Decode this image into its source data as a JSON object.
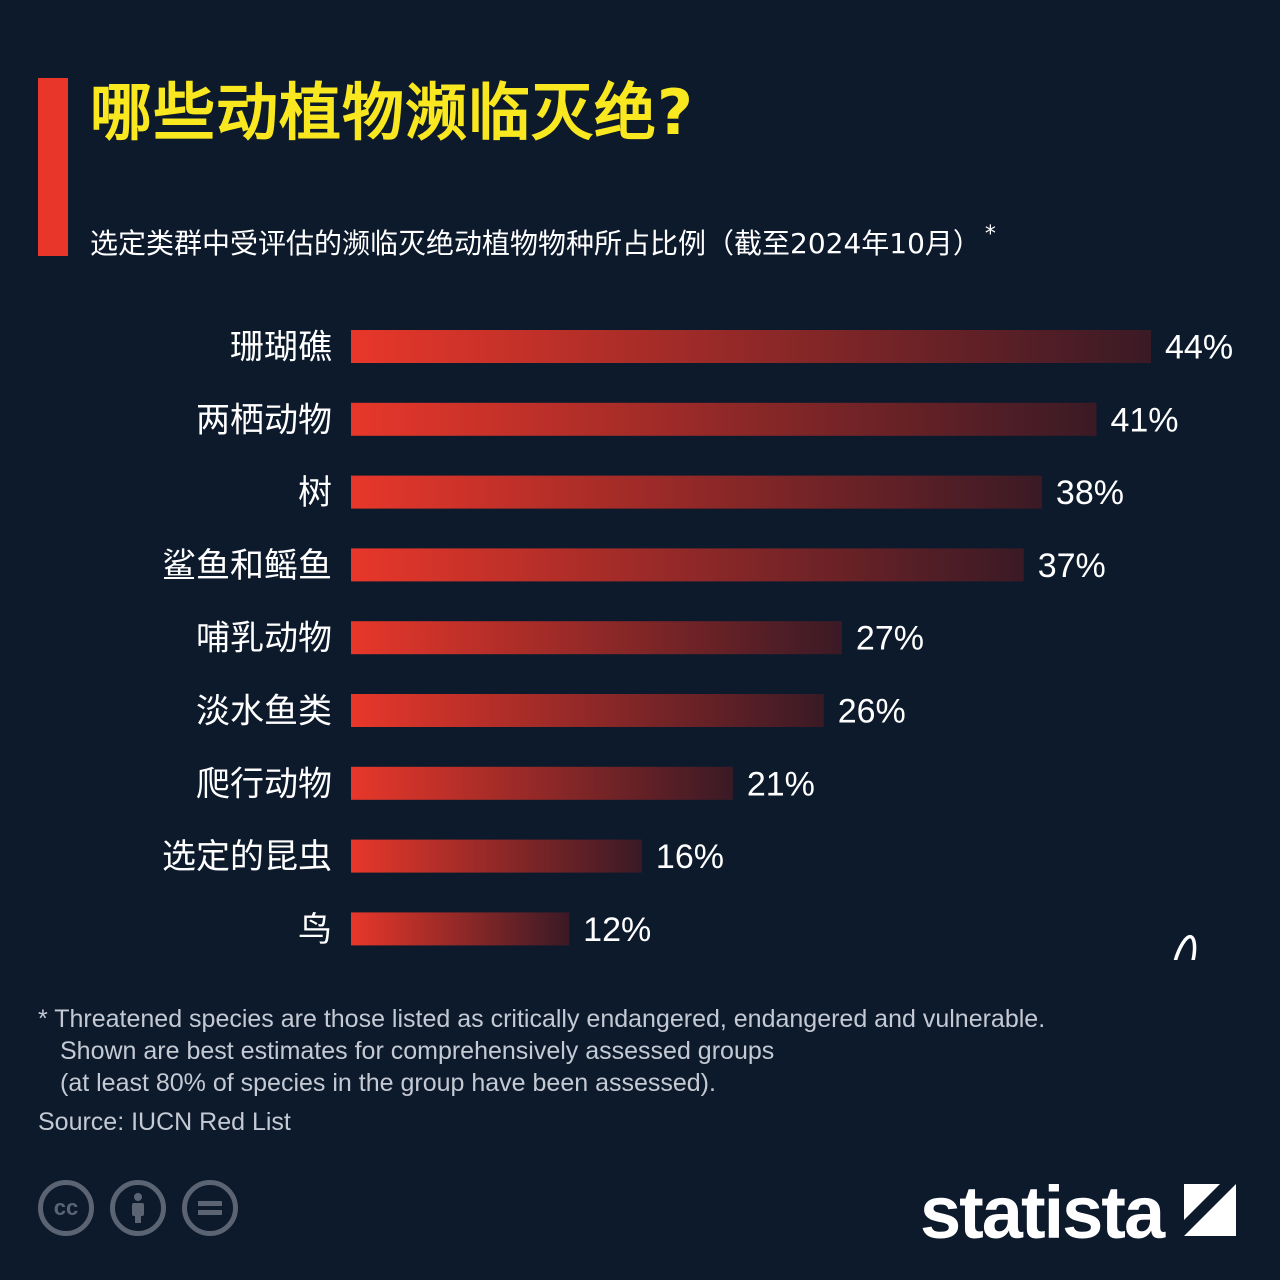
{
  "header": {
    "title": "哪些动植物濒临灭绝?",
    "subtitle": "选定类群中受评估的濒临灭绝动植物物种所占比例（截至2024年10月）",
    "subtitle_marker": "*"
  },
  "chart_data": {
    "type": "bar",
    "orientation": "horizontal",
    "categories": [
      "珊瑚礁",
      "两栖动物",
      "树",
      "鲨鱼和鳐鱼",
      "哺乳动物",
      "淡水鱼类",
      "爬行动物",
      "选定的昆虫",
      "鸟"
    ],
    "values": [
      44,
      41,
      38,
      37,
      27,
      26,
      21,
      16,
      12
    ],
    "value_labels": [
      "44%",
      "41%",
      "38%",
      "37%",
      "27%",
      "26%",
      "21%",
      "16%",
      "12%"
    ],
    "unit": "%",
    "bar_gradient": [
      "#e8372a",
      "#3a1a25"
    ],
    "xlim": [
      0,
      44
    ],
    "grid": false,
    "legend": "none"
  },
  "footnote": {
    "lines": [
      "* Threatened species are those listed as critically endangered, endangered and vulnerable.",
      "Shown are best estimates for comprehensively assessed groups",
      "(at least 80% of species in the group have been assessed)."
    ]
  },
  "source": "Source: IUCN Red List",
  "brand": {
    "name": "statista"
  },
  "colors": {
    "background": "#0d1a2c",
    "title": "#f9e81f",
    "accent": "#e8372a"
  }
}
